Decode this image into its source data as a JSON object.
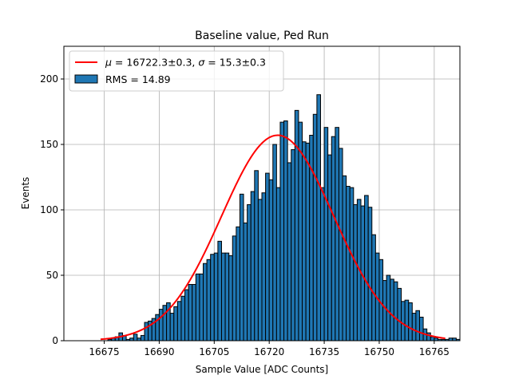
{
  "chart_data": {
    "type": "bar",
    "title": "Baseline value, Ped Run",
    "xlabel": "Sample Value [ADC Counts]",
    "ylabel": "Events",
    "xlim": [
      16664,
      16772
    ],
    "ylim": [
      0,
      225
    ],
    "xticks": [
      16675,
      16690,
      16705,
      16720,
      16735,
      16750,
      16765
    ],
    "yticks": [
      0,
      50,
      100,
      150,
      200
    ],
    "grid": true,
    "legend_position": "top-left",
    "bin_start": 16676,
    "bin_width": 1,
    "values": [
      1,
      2,
      3,
      6,
      4,
      1,
      2,
      5,
      2,
      4,
      14,
      15,
      17,
      20,
      24,
      27,
      29,
      21,
      26,
      30,
      34,
      39,
      43,
      43,
      51,
      51,
      59,
      62,
      66,
      67,
      76,
      67,
      67,
      65,
      80,
      87,
      112,
      90,
      104,
      114,
      130,
      108,
      113,
      128,
      123,
      150,
      117,
      167,
      168,
      136,
      146,
      176,
      167,
      152,
      151,
      157,
      173,
      188,
      117,
      163,
      142,
      156,
      163,
      147,
      126,
      118,
      117,
      104,
      108,
      103,
      111,
      102,
      81,
      67,
      62,
      46,
      50,
      47,
      45,
      40,
      30,
      31,
      29,
      21,
      23,
      18,
      9,
      6,
      3,
      2,
      1,
      1,
      1,
      2,
      2,
      1
    ],
    "fit": {
      "type": "gaussian",
      "mu": 16722.3,
      "sigma": 15.3,
      "amplitude": 157,
      "range": [
        16674,
        16768
      ]
    },
    "series": [
      {
        "name_parts": [
          "μ",
          " = 16722.3±0.3, ",
          "σ",
          " = 15.3±0.3"
        ],
        "color": "#ff0000",
        "kind": "line"
      },
      {
        "name": "RMS = 14.89",
        "color": "#1f77b4",
        "kind": "bar"
      }
    ]
  }
}
